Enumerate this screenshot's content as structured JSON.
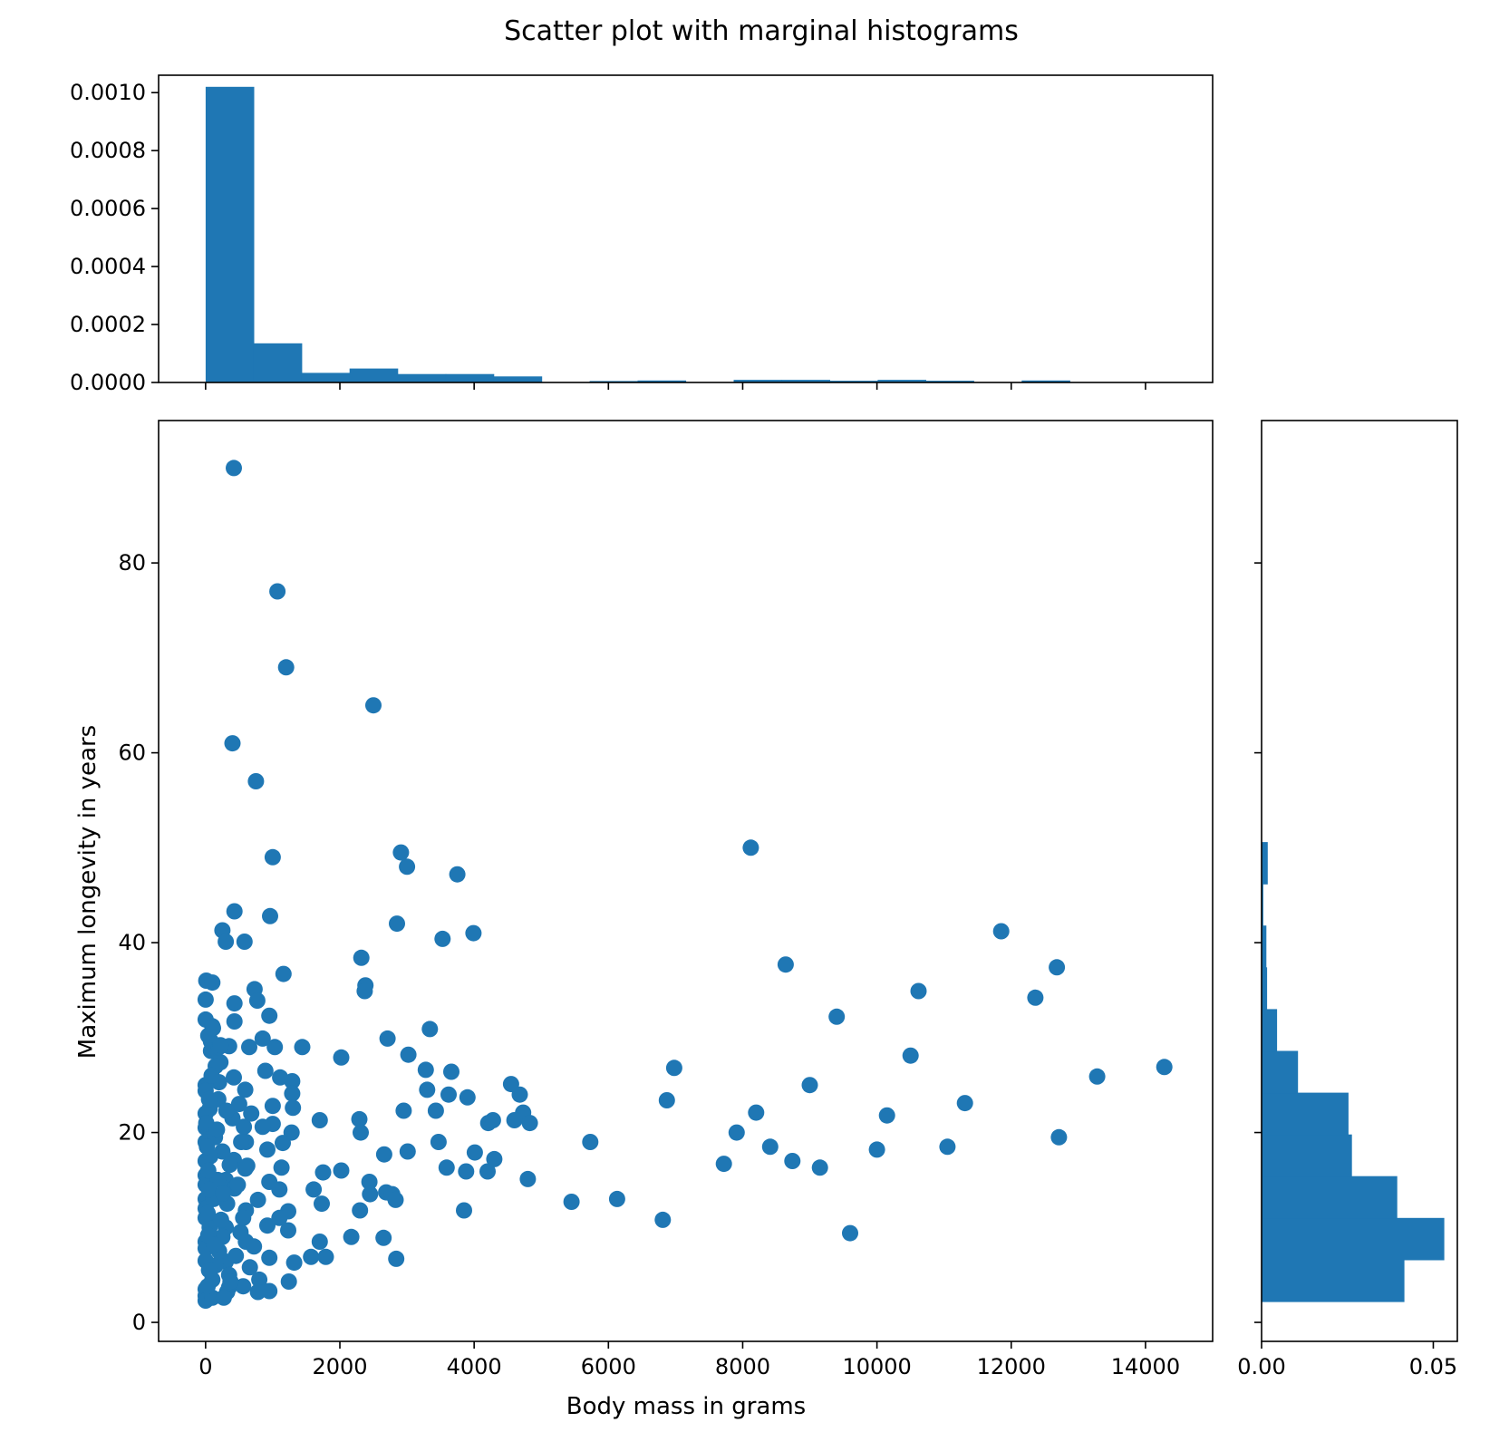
{
  "chart_data": {
    "title": "Scatter plot with marginal histograms",
    "colors": {
      "marks": "#1f77b4",
      "background": "#ffffff",
      "axes": "#000000"
    },
    "grid": false,
    "panels": [
      {
        "type": "scatter",
        "role": "main",
        "xlabel": "Body mass in grams",
        "ylabel": "Maximum longevity in years",
        "xlim": [
          -700,
          15000
        ],
        "ylim": [
          -2,
          95
        ],
        "xticks": [
          0,
          2000,
          4000,
          6000,
          8000,
          10000,
          12000,
          14000
        ],
        "xtick_labels": [
          "0",
          "2000",
          "4000",
          "6000",
          "8000",
          "10000",
          "12000",
          "14000"
        ],
        "yticks": [
          0,
          20,
          40,
          60,
          80
        ],
        "ytick_labels": [
          "0",
          "20",
          "40",
          "60",
          "80"
        ],
        "points": [
          [
            420,
            90
          ],
          [
            1070,
            77
          ],
          [
            1200,
            69
          ],
          [
            2500,
            65
          ],
          [
            400,
            61
          ],
          [
            750,
            57
          ],
          [
            8120,
            50
          ],
          [
            2910,
            49.5
          ],
          [
            1000,
            49
          ],
          [
            3000,
            48
          ],
          [
            3750,
            47.2
          ],
          [
            430,
            43.3
          ],
          [
            960,
            42.8
          ],
          [
            2850,
            42
          ],
          [
            250,
            41.3
          ],
          [
            11850,
            41.2
          ],
          [
            3990,
            41
          ],
          [
            3530,
            40.4
          ],
          [
            300,
            40.1
          ],
          [
            580,
            40.1
          ],
          [
            2320,
            38.4
          ],
          [
            8640,
            37.7
          ],
          [
            12680,
            37.4
          ],
          [
            1160,
            36.7
          ],
          [
            10,
            36
          ],
          [
            100,
            35.8
          ],
          [
            2380,
            35.5
          ],
          [
            730,
            35.1
          ],
          [
            10620,
            34.9
          ],
          [
            2370,
            34.9
          ],
          [
            12360,
            34.2
          ],
          [
            0,
            34
          ],
          [
            770,
            33.9
          ],
          [
            430,
            33.6
          ],
          [
            950,
            32.3
          ],
          [
            9400,
            32.2
          ],
          [
            0,
            31.9
          ],
          [
            430,
            31.7
          ],
          [
            100,
            31.2
          ],
          [
            3340,
            30.9
          ],
          [
            40,
            30.2
          ],
          [
            2710,
            29.9
          ],
          [
            850,
            29.9
          ],
          [
            80,
            29.6
          ],
          [
            350,
            29.1
          ],
          [
            1030,
            29
          ],
          [
            650,
            29
          ],
          [
            1440,
            29
          ],
          [
            80,
            28.6
          ],
          [
            10500,
            28.1
          ],
          [
            2020,
            27.9
          ],
          [
            3020,
            28.2
          ],
          [
            220,
            27.4
          ],
          [
            6980,
            26.8
          ],
          [
            14280,
            26.9
          ],
          [
            3280,
            26.6
          ],
          [
            3660,
            26.4
          ],
          [
            890,
            26.5
          ],
          [
            1110,
            25.8
          ],
          [
            13280,
            25.9
          ],
          [
            1290,
            25.4
          ],
          [
            200,
            25.3
          ],
          [
            0,
            25
          ],
          [
            4550,
            25.1
          ],
          [
            9000,
            25
          ],
          [
            590,
            24.5
          ],
          [
            0,
            24.4
          ],
          [
            3300,
            24.5
          ],
          [
            1290,
            24.1
          ],
          [
            3620,
            24
          ],
          [
            4680,
            24
          ],
          [
            3900,
            23.7
          ],
          [
            6870,
            23.4
          ],
          [
            190,
            23.5
          ],
          [
            11310,
            23.1
          ],
          [
            1000,
            22.8
          ],
          [
            1300,
            22.6
          ],
          [
            2950,
            22.3
          ],
          [
            3430,
            22.3
          ],
          [
            8200,
            22.1
          ],
          [
            4730,
            22.1
          ],
          [
            10150,
            21.8
          ],
          [
            0,
            22
          ],
          [
            2290,
            21.4
          ],
          [
            1700,
            21.3
          ],
          [
            4210,
            21
          ],
          [
            4600,
            21.3
          ],
          [
            4280,
            21.3
          ],
          [
            4830,
            21
          ],
          [
            1000,
            20.9
          ],
          [
            850,
            20.6
          ],
          [
            0,
            20.5
          ],
          [
            2310,
            20
          ],
          [
            1280,
            20
          ],
          [
            7910,
            20
          ],
          [
            570,
            20.6
          ],
          [
            12710,
            19.5
          ],
          [
            0,
            19
          ],
          [
            5730,
            19
          ],
          [
            3470,
            19
          ],
          [
            1150,
            18.9
          ],
          [
            600,
            19
          ],
          [
            8410,
            18.5
          ],
          [
            11050,
            18.5
          ],
          [
            920,
            18.2
          ],
          [
            10000,
            18.2
          ],
          [
            3010,
            18
          ],
          [
            4010,
            17.9
          ],
          [
            2660,
            17.7
          ],
          [
            8740,
            17
          ],
          [
            4300,
            17.2
          ],
          [
            420,
            17.1
          ],
          [
            0,
            17
          ],
          [
            9150,
            16.3
          ],
          [
            7720,
            16.7
          ],
          [
            1130,
            16.3
          ],
          [
            3590,
            16.3
          ],
          [
            590,
            16.2
          ],
          [
            2020,
            16
          ],
          [
            1750,
            15.8
          ],
          [
            3880,
            15.9
          ],
          [
            4200,
            15.9
          ],
          [
            0,
            15.5
          ],
          [
            4800,
            15.1
          ],
          [
            950,
            14.8
          ],
          [
            2440,
            14.8
          ],
          [
            300,
            15
          ],
          [
            0,
            14.5
          ],
          [
            1100,
            14
          ],
          [
            1610,
            14
          ],
          [
            2690,
            13.7
          ],
          [
            2450,
            13.5
          ],
          [
            430,
            14.1
          ],
          [
            2780,
            13.5
          ],
          [
            0,
            13
          ],
          [
            2830,
            12.9
          ],
          [
            6130,
            13
          ],
          [
            5450,
            12.7
          ],
          [
            780,
            12.9
          ],
          [
            1730,
            12.5
          ],
          [
            0,
            12
          ],
          [
            3850,
            11.8
          ],
          [
            2300,
            11.8
          ],
          [
            1230,
            11.7
          ],
          [
            600,
            11.8
          ],
          [
            1100,
            11
          ],
          [
            0,
            11
          ],
          [
            6810,
            10.8
          ],
          [
            920,
            10.2
          ],
          [
            1230,
            9.7
          ],
          [
            300,
            10
          ],
          [
            9600,
            9.4
          ],
          [
            2170,
            9
          ],
          [
            2650,
            8.9
          ],
          [
            1700,
            8.5
          ],
          [
            0,
            8.5
          ],
          [
            600,
            8.5
          ],
          [
            0,
            7.8
          ],
          [
            1570,
            6.9
          ],
          [
            1790,
            6.9
          ],
          [
            950,
            6.8
          ],
          [
            2840,
            6.7
          ],
          [
            1320,
            6.3
          ],
          [
            0,
            6.5
          ],
          [
            300,
            6.4
          ],
          [
            800,
            4.5
          ],
          [
            1240,
            4.3
          ],
          [
            350,
            3.7
          ],
          [
            0,
            3.5
          ],
          [
            950,
            3.3
          ],
          [
            780,
            3.2
          ],
          [
            320,
            3.2
          ],
          [
            0,
            2.8
          ],
          [
            0,
            2.3
          ],
          [
            100,
            2.6
          ],
          [
            150,
            6
          ],
          [
            250,
            9
          ],
          [
            320,
            12.5
          ],
          [
            180,
            15
          ],
          [
            250,
            18
          ],
          [
            400,
            21.5
          ],
          [
            500,
            23
          ],
          [
            150,
            27
          ],
          [
            100,
            4.5
          ],
          [
            200,
            7.5
          ],
          [
            60,
            10
          ],
          [
            120,
            13
          ],
          [
            70,
            17.5
          ],
          [
            140,
            19.5
          ],
          [
            60,
            22.5
          ],
          [
            90,
            26
          ],
          [
            200,
            29
          ],
          [
            30,
            3.8
          ],
          [
            50,
            5.5
          ],
          [
            40,
            9.2
          ],
          [
            30,
            11.5
          ],
          [
            50,
            14
          ],
          [
            40,
            16
          ],
          [
            20,
            18.5
          ],
          [
            10,
            21
          ],
          [
            50,
            23.5
          ],
          [
            350,
            5
          ],
          [
            450,
            7
          ],
          [
            520,
            9.5
          ],
          [
            560,
            11
          ],
          [
            480,
            14.5
          ],
          [
            620,
            16.5
          ],
          [
            530,
            19
          ],
          [
            680,
            22
          ],
          [
            720,
            8
          ],
          [
            660,
            5.8
          ],
          [
            560,
            3.8
          ],
          [
            270,
            2.6
          ],
          [
            370,
            4.3
          ],
          [
            130,
            8.2
          ],
          [
            230,
            10.8
          ],
          [
            170,
            20.3
          ],
          [
            420,
            25.8
          ],
          [
            310,
            22.3
          ],
          [
            260,
            13.6
          ],
          [
            360,
            16.6
          ],
          [
            110,
            31
          ],
          [
            220,
            29.2
          ]
        ]
      },
      {
        "type": "bar",
        "role": "top-marginal-histogram",
        "orientation": "vertical",
        "bin_edges": [
          0,
          715,
          1430,
          2145,
          2860,
          3575,
          4290,
          5005,
          5720,
          6435,
          7150,
          7865,
          8580,
          9295,
          10010,
          10725,
          11440,
          12155,
          12870
        ],
        "values": [
          0.00102,
          0.000135,
          3.3e-05,
          4.8e-05,
          2.9e-05,
          2.9e-05,
          2.1e-05,
          0,
          5e-06,
          7e-06,
          0,
          9e-06,
          9e-06,
          6e-06,
          9e-06,
          6e-06,
          0,
          7e-06
        ],
        "ylim": [
          0,
          0.00106
        ],
        "yticks": [
          0,
          0.0002,
          0.0004,
          0.0006,
          0.0008,
          0.001
        ],
        "ytick_labels": [
          "0.0000",
          "0.0002",
          "0.0004",
          "0.0006",
          "0.0008",
          "0.0010"
        ]
      },
      {
        "type": "bar",
        "role": "right-marginal-histogram",
        "orientation": "horizontal",
        "bin_edges": [
          2.2,
          6.6,
          11,
          15.4,
          19.8,
          24.2,
          28.6,
          33,
          37.4,
          41.8,
          46.2,
          50.6
        ],
        "values": [
          0.0416,
          0.0532,
          0.0395,
          0.0263,
          0.0253,
          0.0106,
          0.0045,
          0.0016,
          0.0014,
          0.0005,
          0.0018
        ],
        "xlim": [
          0,
          0.057
        ],
        "xticks": [
          0,
          0.05
        ],
        "xtick_labels": [
          "0.00",
          "0.05"
        ]
      }
    ]
  }
}
